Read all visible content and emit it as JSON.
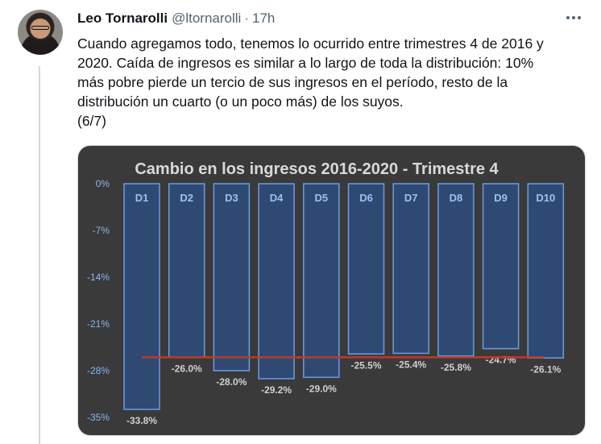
{
  "tweet": {
    "author_name": "Leo Tornarolli",
    "handle": "@ltornarolli",
    "separator": "·",
    "time": "17h",
    "text_lines": [
      "Cuando agregamos todo, tenemos lo ocurrido entre trimestres 4 de 2016 y",
      "2020. Caída de ingresos es similar a lo largo de toda la distribución: 10%",
      "más pobre pierde un tercio de sus ingresos en el período, resto de la",
      "distribución un cuarto (o un poco más) de los suyos.",
      "(6/7)"
    ]
  },
  "icons": {
    "more": "more-horizontal-icon",
    "avatar": "profile-photo"
  },
  "colors": {
    "chart_bg": "#3a3a3a",
    "bar_fill": "#2e4a73",
    "bar_stroke": "#6f9be0",
    "ref_line": "#c0392b",
    "text": "#0f1419",
    "muted": "#536471"
  },
  "chart_data": {
    "type": "bar",
    "title": "Cambio en los ingresos 2016-2020 - Trimestre 4",
    "categories": [
      "D1",
      "D2",
      "D3",
      "D4",
      "D5",
      "D6",
      "D7",
      "D8",
      "D9",
      "D10"
    ],
    "values": [
      -33.8,
      -26.0,
      -28.0,
      -29.2,
      -29.0,
      -25.5,
      -25.4,
      -25.8,
      -24.7,
      -26.1
    ],
    "value_labels": [
      "-33.8%",
      "-26.0%",
      "-28.0%",
      "-29.2%",
      "-29.0%",
      "-25.5%",
      "-25.4%",
      "-25.8%",
      "-24.7%",
      "-26.1%"
    ],
    "y_ticks": [
      0,
      -7,
      -14,
      -21,
      -28,
      -35
    ],
    "y_tick_labels": [
      "0%",
      "-7%",
      "-14%",
      "-21%",
      "-28%",
      "-35%"
    ],
    "ylim": [
      -35,
      0
    ],
    "reference_line_value": -26.0,
    "grid": false
  }
}
